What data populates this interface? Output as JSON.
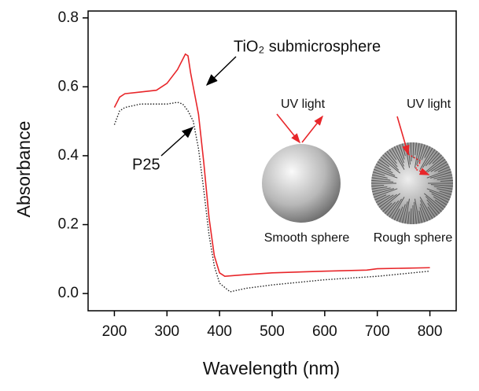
{
  "chart_data": {
    "type": "line",
    "xlabel": "Wavelength (nm)",
    "ylabel": "Absorbance",
    "xlim": [
      150,
      850
    ],
    "ylim": [
      -0.05,
      0.82
    ],
    "xticks": [
      200,
      300,
      400,
      500,
      600,
      700,
      800
    ],
    "yticks": [
      {
        "value": 0,
        "label": "0.0"
      },
      {
        "value": 0.2,
        "label": "0.2"
      },
      {
        "value": 0.4,
        "label": "0.4"
      },
      {
        "value": 0.6,
        "label": "0.6"
      },
      {
        "value": 0.8,
        "label": "0.8"
      }
    ],
    "series": [
      {
        "color": "#e8262a",
        "style": "solid",
        "x": [
          200,
          210,
          220,
          250,
          280,
          300,
          320,
          335,
          340,
          345,
          350,
          360,
          370,
          380,
          390,
          400,
          410,
          450,
          500,
          600,
          680,
          700,
          800
        ],
        "values": [
          0.54,
          0.57,
          0.58,
          0.585,
          0.59,
          0.61,
          0.65,
          0.695,
          0.69,
          0.64,
          0.6,
          0.52,
          0.38,
          0.22,
          0.11,
          0.06,
          0.05,
          0.055,
          0.06,
          0.065,
          0.068,
          0.072,
          0.075
        ]
      },
      {
        "color": "#222222",
        "style": "dotted",
        "x": [
          200,
          210,
          220,
          250,
          300,
          320,
          330,
          340,
          350,
          360,
          370,
          380,
          390,
          400,
          420,
          450,
          500,
          600,
          700,
          800
        ],
        "values": [
          0.49,
          0.53,
          0.54,
          0.55,
          0.55,
          0.555,
          0.55,
          0.53,
          0.5,
          0.42,
          0.3,
          0.17,
          0.08,
          0.03,
          0.005,
          0.015,
          0.025,
          0.04,
          0.05,
          0.065
        ]
      }
    ],
    "annotations": [
      "TiO₂ submicrosphere",
      "P25",
      "UV light",
      "UV light",
      "Smooth sphere",
      "Rough sphere"
    ]
  }
}
